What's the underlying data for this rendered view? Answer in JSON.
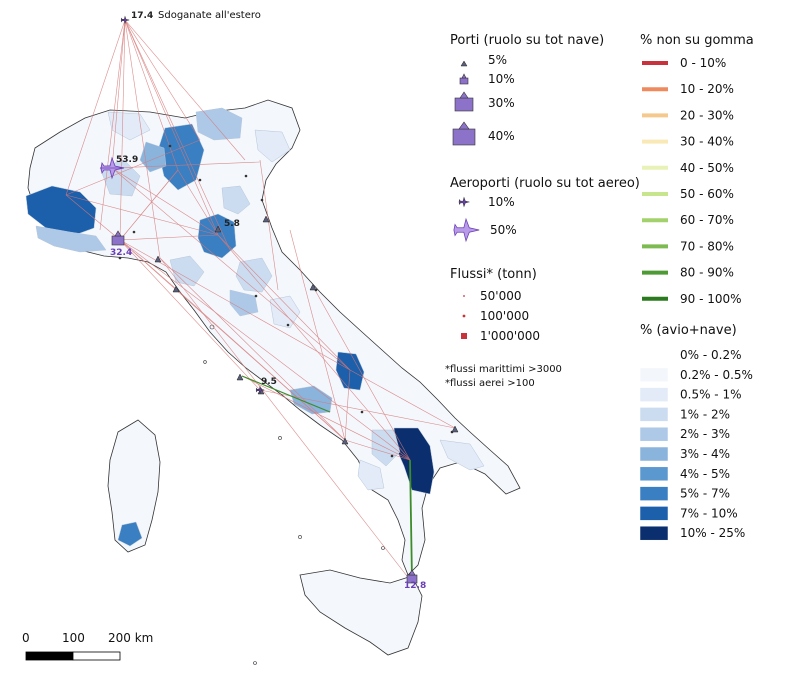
{
  "abroad": {
    "value": "17.4",
    "label": "Sdoganate all'estero"
  },
  "values": {
    "v1": "53.9",
    "v2": "5.8",
    "v3": "32.4",
    "v4": "9.5",
    "v5": "12.8"
  },
  "legend_ports": {
    "title": "Porti (ruolo su tot nave)",
    "items": [
      "5%",
      "10%",
      "30%",
      "40%"
    ]
  },
  "legend_airports": {
    "title": "Aeroporti (ruolo su tot aereo)",
    "items": [
      "10%",
      "50%"
    ]
  },
  "legend_flows": {
    "title": "Flussi* (tonn)",
    "items": [
      "50'000",
      "100'000",
      "1'000'000"
    ],
    "notes": [
      "*flussi marittimi  >3000",
      "*flussi aerei >100"
    ]
  },
  "legend_nongomma": {
    "title": "% non su gomma",
    "items": [
      {
        "label": "0 - 10%",
        "color": "#c8323c"
      },
      {
        "label": "10 - 20%",
        "color": "#ee8a5e"
      },
      {
        "label": "20 - 30%",
        "color": "#f5c98e"
      },
      {
        "label": "30 - 40%",
        "color": "#f8e9b6"
      },
      {
        "label": "40 - 50%",
        "color": "#e8f2b6"
      },
      {
        "label": "50 - 60%",
        "color": "#c7e58c"
      },
      {
        "label": "60 - 70%",
        "color": "#a3d26d"
      },
      {
        "label": "70 - 80%",
        "color": "#7dbb52"
      },
      {
        "label": "80 - 90%",
        "color": "#4e9a35"
      },
      {
        "label": "90 - 100%",
        "color": "#2b7a1f"
      }
    ]
  },
  "legend_share": {
    "title": "% (avio+nave)",
    "items": [
      {
        "label": "0% - 0.2%",
        "color": "#ffffff"
      },
      {
        "label": "0.2% - 0.5%",
        "color": "#f3f7fc"
      },
      {
        "label": "0.5% - 1%",
        "color": "#e2ebf7"
      },
      {
        "label": "1% - 2%",
        "color": "#cbdcf0"
      },
      {
        "label": "2% - 3%",
        "color": "#adc9e7"
      },
      {
        "label": "3% - 4%",
        "color": "#8ab4dc"
      },
      {
        "label": "4% - 5%",
        "color": "#5b98cf"
      },
      {
        "label": "5% - 7%",
        "color": "#3a7fc2"
      },
      {
        "label": "7% - 10%",
        "color": "#1c5fab"
      },
      {
        "label": "10% - 25%",
        "color": "#0b2f6e"
      }
    ]
  },
  "scale": {
    "labels": [
      "0",
      "100",
      "200 km"
    ]
  }
}
